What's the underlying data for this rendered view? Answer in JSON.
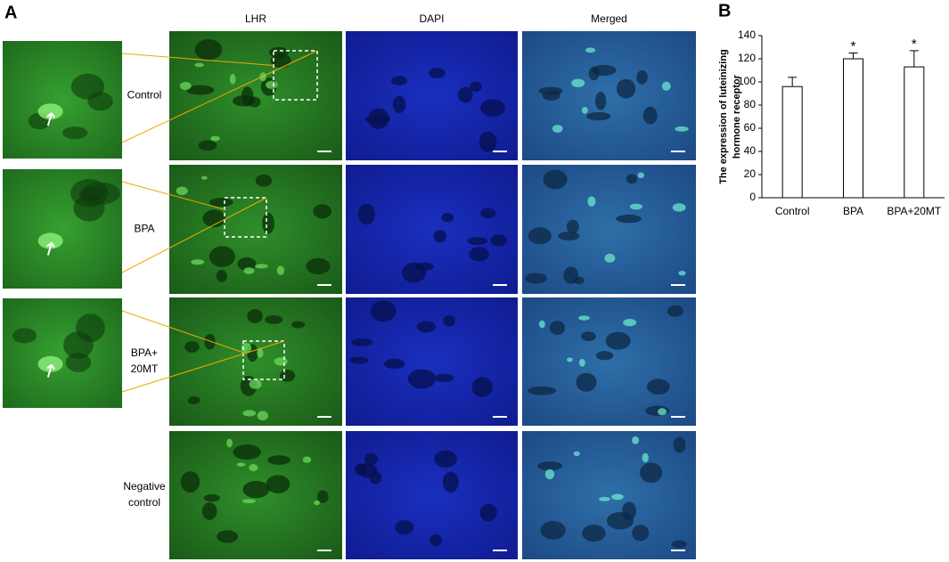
{
  "panel_labels": {
    "a": "A",
    "b": "B"
  },
  "columns": [
    "LHR",
    "DAPI",
    "Merged"
  ],
  "rows": [
    [
      "Control"
    ],
    [
      "BPA"
    ],
    [
      "BPA+",
      "20MT"
    ],
    [
      "Negative",
      "control"
    ]
  ],
  "chart_data": {
    "type": "bar",
    "ylabel": [
      "The expression of luteinizing",
      "hormone receptor"
    ],
    "categories": [
      "Control",
      "BPA",
      "BPA+20MT"
    ],
    "values": [
      96,
      120,
      113
    ],
    "errors": [
      8,
      5,
      14
    ],
    "annotations": [
      {
        "category": "BPA",
        "text": "*"
      },
      {
        "category": "BPA+20MT",
        "text": "*"
      }
    ],
    "color": "#ffffff",
    "ylim": [
      0,
      140
    ],
    "yticks": [
      0,
      20,
      40,
      60,
      80,
      100,
      120,
      140
    ]
  }
}
